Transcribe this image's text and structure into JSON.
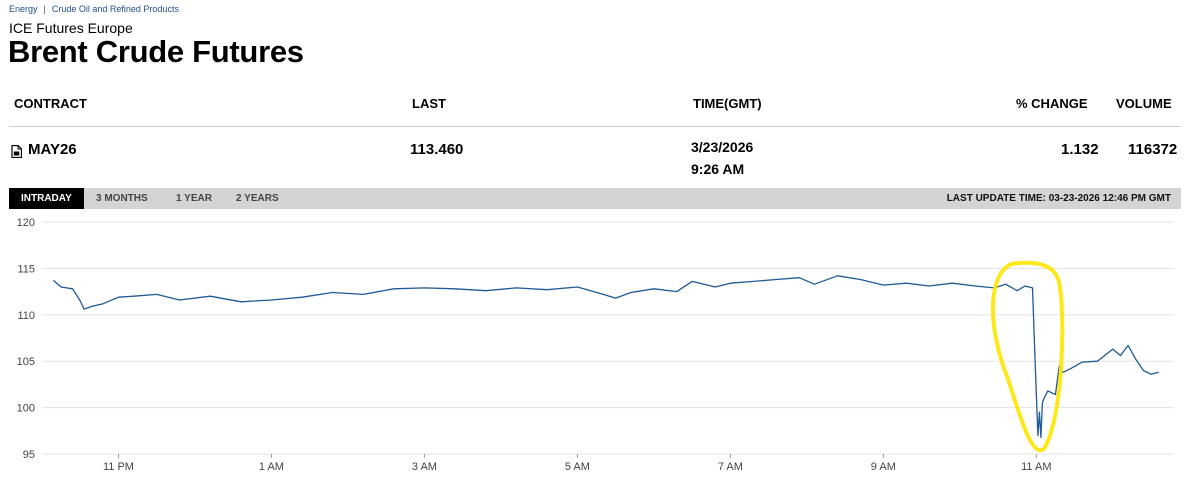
{
  "breadcrumb": {
    "items": [
      "Energy",
      "Crude Oil and Refined Products"
    ],
    "separator": "|"
  },
  "exchange": "ICE Futures Europe",
  "title": "Brent Crude Futures",
  "table": {
    "headers": {
      "contract": "CONTRACT",
      "last": "LAST",
      "time": "TIME(GMT)",
      "pct_change": "% CHANGE",
      "volume": "VOLUME"
    },
    "row": {
      "contract": "MAY26",
      "last": "113.460",
      "date": "3/23/2026",
      "time": "9:26 AM",
      "pct_change": "1.132",
      "volume": "116372"
    }
  },
  "tabs": [
    "INTRADAY",
    "3 MONTHS",
    "1 YEAR",
    "2 YEARS"
  ],
  "active_tab": "INTRADAY",
  "last_update": "LAST UPDATE TIME: 03-23-2026 12:46 PM GMT",
  "colors": {
    "line": "#1f5a96",
    "highlight": "#ffe600",
    "link": "#1f4e8c",
    "tabbar": "#d4d4d4"
  },
  "chart_data": {
    "type": "line",
    "title": "",
    "xlabel": "",
    "ylabel": "",
    "ylim": [
      95,
      120
    ],
    "yticks": [
      95,
      100,
      105,
      110,
      115,
      120
    ],
    "xlim": [
      -2.0,
      12.8
    ],
    "xticks": [
      {
        "label": "11 PM",
        "value": -1.0
      },
      {
        "label": "1 AM",
        "value": 1.0
      },
      {
        "label": "3 AM",
        "value": 3.0
      },
      {
        "label": "5 AM",
        "value": 5.0
      },
      {
        "label": "7 AM",
        "value": 7.0
      },
      {
        "label": "9 AM",
        "value": 9.0
      },
      {
        "label": "11 AM",
        "value": 11.0
      }
    ],
    "grid": true,
    "series": [
      {
        "x": [
          -1.85,
          -1.75,
          -1.6,
          -1.5,
          -1.45,
          -1.35,
          -1.2,
          -1.0,
          -0.8,
          -0.5,
          -0.2,
          0.2,
          0.6,
          1.0,
          1.4,
          1.8,
          2.2,
          2.6,
          3.0,
          3.4,
          3.8,
          4.2,
          4.6,
          5.0,
          5.3,
          5.5,
          5.7,
          6.0,
          6.3,
          6.5,
          6.8,
          7.0,
          7.3,
          7.6,
          7.9,
          8.1,
          8.4,
          8.7,
          9.0,
          9.3,
          9.6,
          9.9,
          10.2,
          10.45,
          10.6,
          10.75,
          10.85,
          10.95,
          11.0,
          11.02,
          11.04,
          11.06,
          11.08,
          11.1,
          11.15,
          11.25,
          11.3,
          11.35,
          11.45,
          11.6,
          11.8,
          12.0,
          12.1,
          12.2,
          12.3,
          12.4,
          12.5,
          12.6
        ],
        "values": [
          113.7,
          113.0,
          112.8,
          111.5,
          110.6,
          110.9,
          111.2,
          111.9,
          112.0,
          112.2,
          111.6,
          112.0,
          111.4,
          111.6,
          111.9,
          112.4,
          112.2,
          112.8,
          112.9,
          112.8,
          112.6,
          112.9,
          112.7,
          113.0,
          112.3,
          111.8,
          112.4,
          112.8,
          112.5,
          113.6,
          113.0,
          113.4,
          113.6,
          113.8,
          114.0,
          113.3,
          114.2,
          113.8,
          113.2,
          113.4,
          113.1,
          113.4,
          113.1,
          112.9,
          113.3,
          112.6,
          113.1,
          112.9,
          101.5,
          97.0,
          99.5,
          96.8,
          100.5,
          101.0,
          101.8,
          101.4,
          104.5,
          103.8,
          104.2,
          104.9,
          105.0,
          106.3,
          105.6,
          106.7,
          105.2,
          104.0,
          103.6,
          103.8
        ]
      }
    ],
    "annotation": {
      "type": "hand-drawn-ellipse",
      "color": "#ffe600"
    }
  }
}
